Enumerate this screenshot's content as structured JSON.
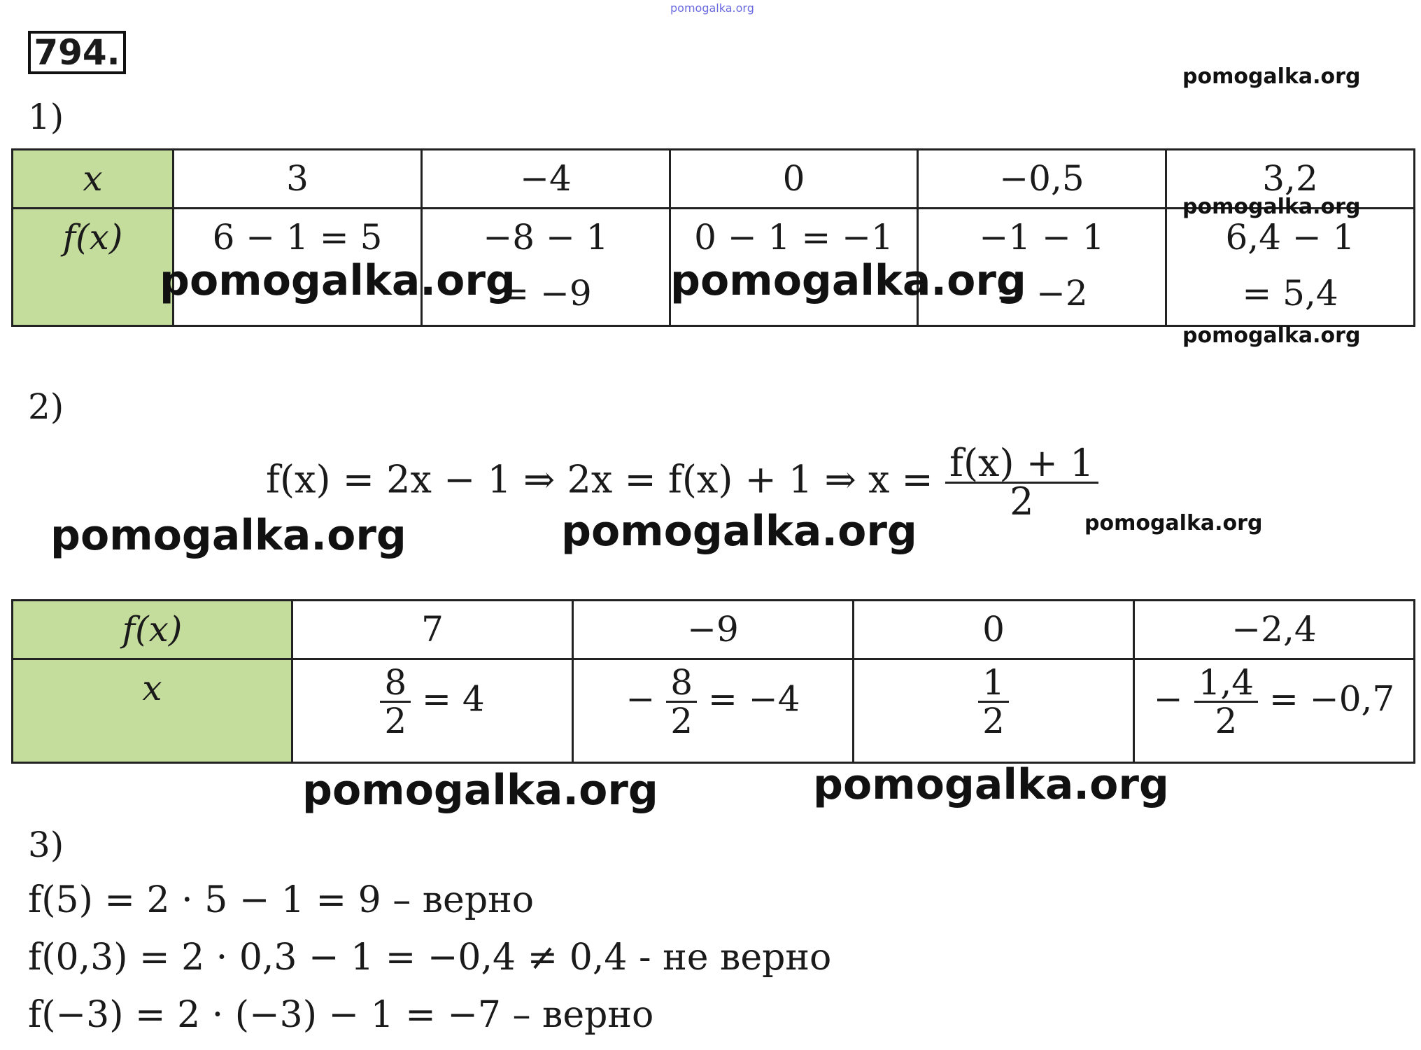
{
  "problem_number": "794.",
  "watermark": "pomogalka.org",
  "part1": {
    "label": "1)",
    "row_x_label": "x",
    "row_f_label": "f(x)",
    "x_values": [
      "3",
      "−4",
      "0",
      "−0,5",
      "3,2"
    ],
    "f_line1": [
      "6 − 1 = 5",
      "−8 − 1",
      "0 − 1 = −1",
      "−1 − 1",
      "6,4 − 1"
    ],
    "f_line2": [
      "",
      "= −9",
      "",
      "= −2",
      "= 5,4"
    ]
  },
  "part2": {
    "label": "2)",
    "formula_left": "f(x) = 2x − 1  ⇒  2x = f(x) + 1  ⇒  x =",
    "formula_num": "f(x) + 1",
    "formula_den": "2",
    "row_f_label": "f(x)",
    "row_x_label": "x",
    "f_values": [
      "7",
      "−9",
      "0",
      "−2,4"
    ],
    "x_cells": [
      {
        "sign": "",
        "num": "8",
        "den": "2",
        "result": "= 4"
      },
      {
        "sign": "−",
        "num": "8",
        "den": "2",
        "result": "= −4"
      },
      {
        "sign": "",
        "num": "1",
        "den": "2",
        "result": ""
      },
      {
        "sign": "−",
        "num": "1,4",
        "den": "2",
        "result": "= −0,7"
      }
    ]
  },
  "part3": {
    "label": "3)",
    "lines": [
      "f(5) = 2 · 5 − 1 = 9 – верно",
      "f(0,3) = 2 · 0,3 − 1 = −0,4 ≠ 0,4 - не верно",
      "f(−3) = 2 · (−3) − 1 = −7 – верно"
    ]
  },
  "colors": {
    "header_fill": "#c4dc9c",
    "border": "#222222"
  }
}
